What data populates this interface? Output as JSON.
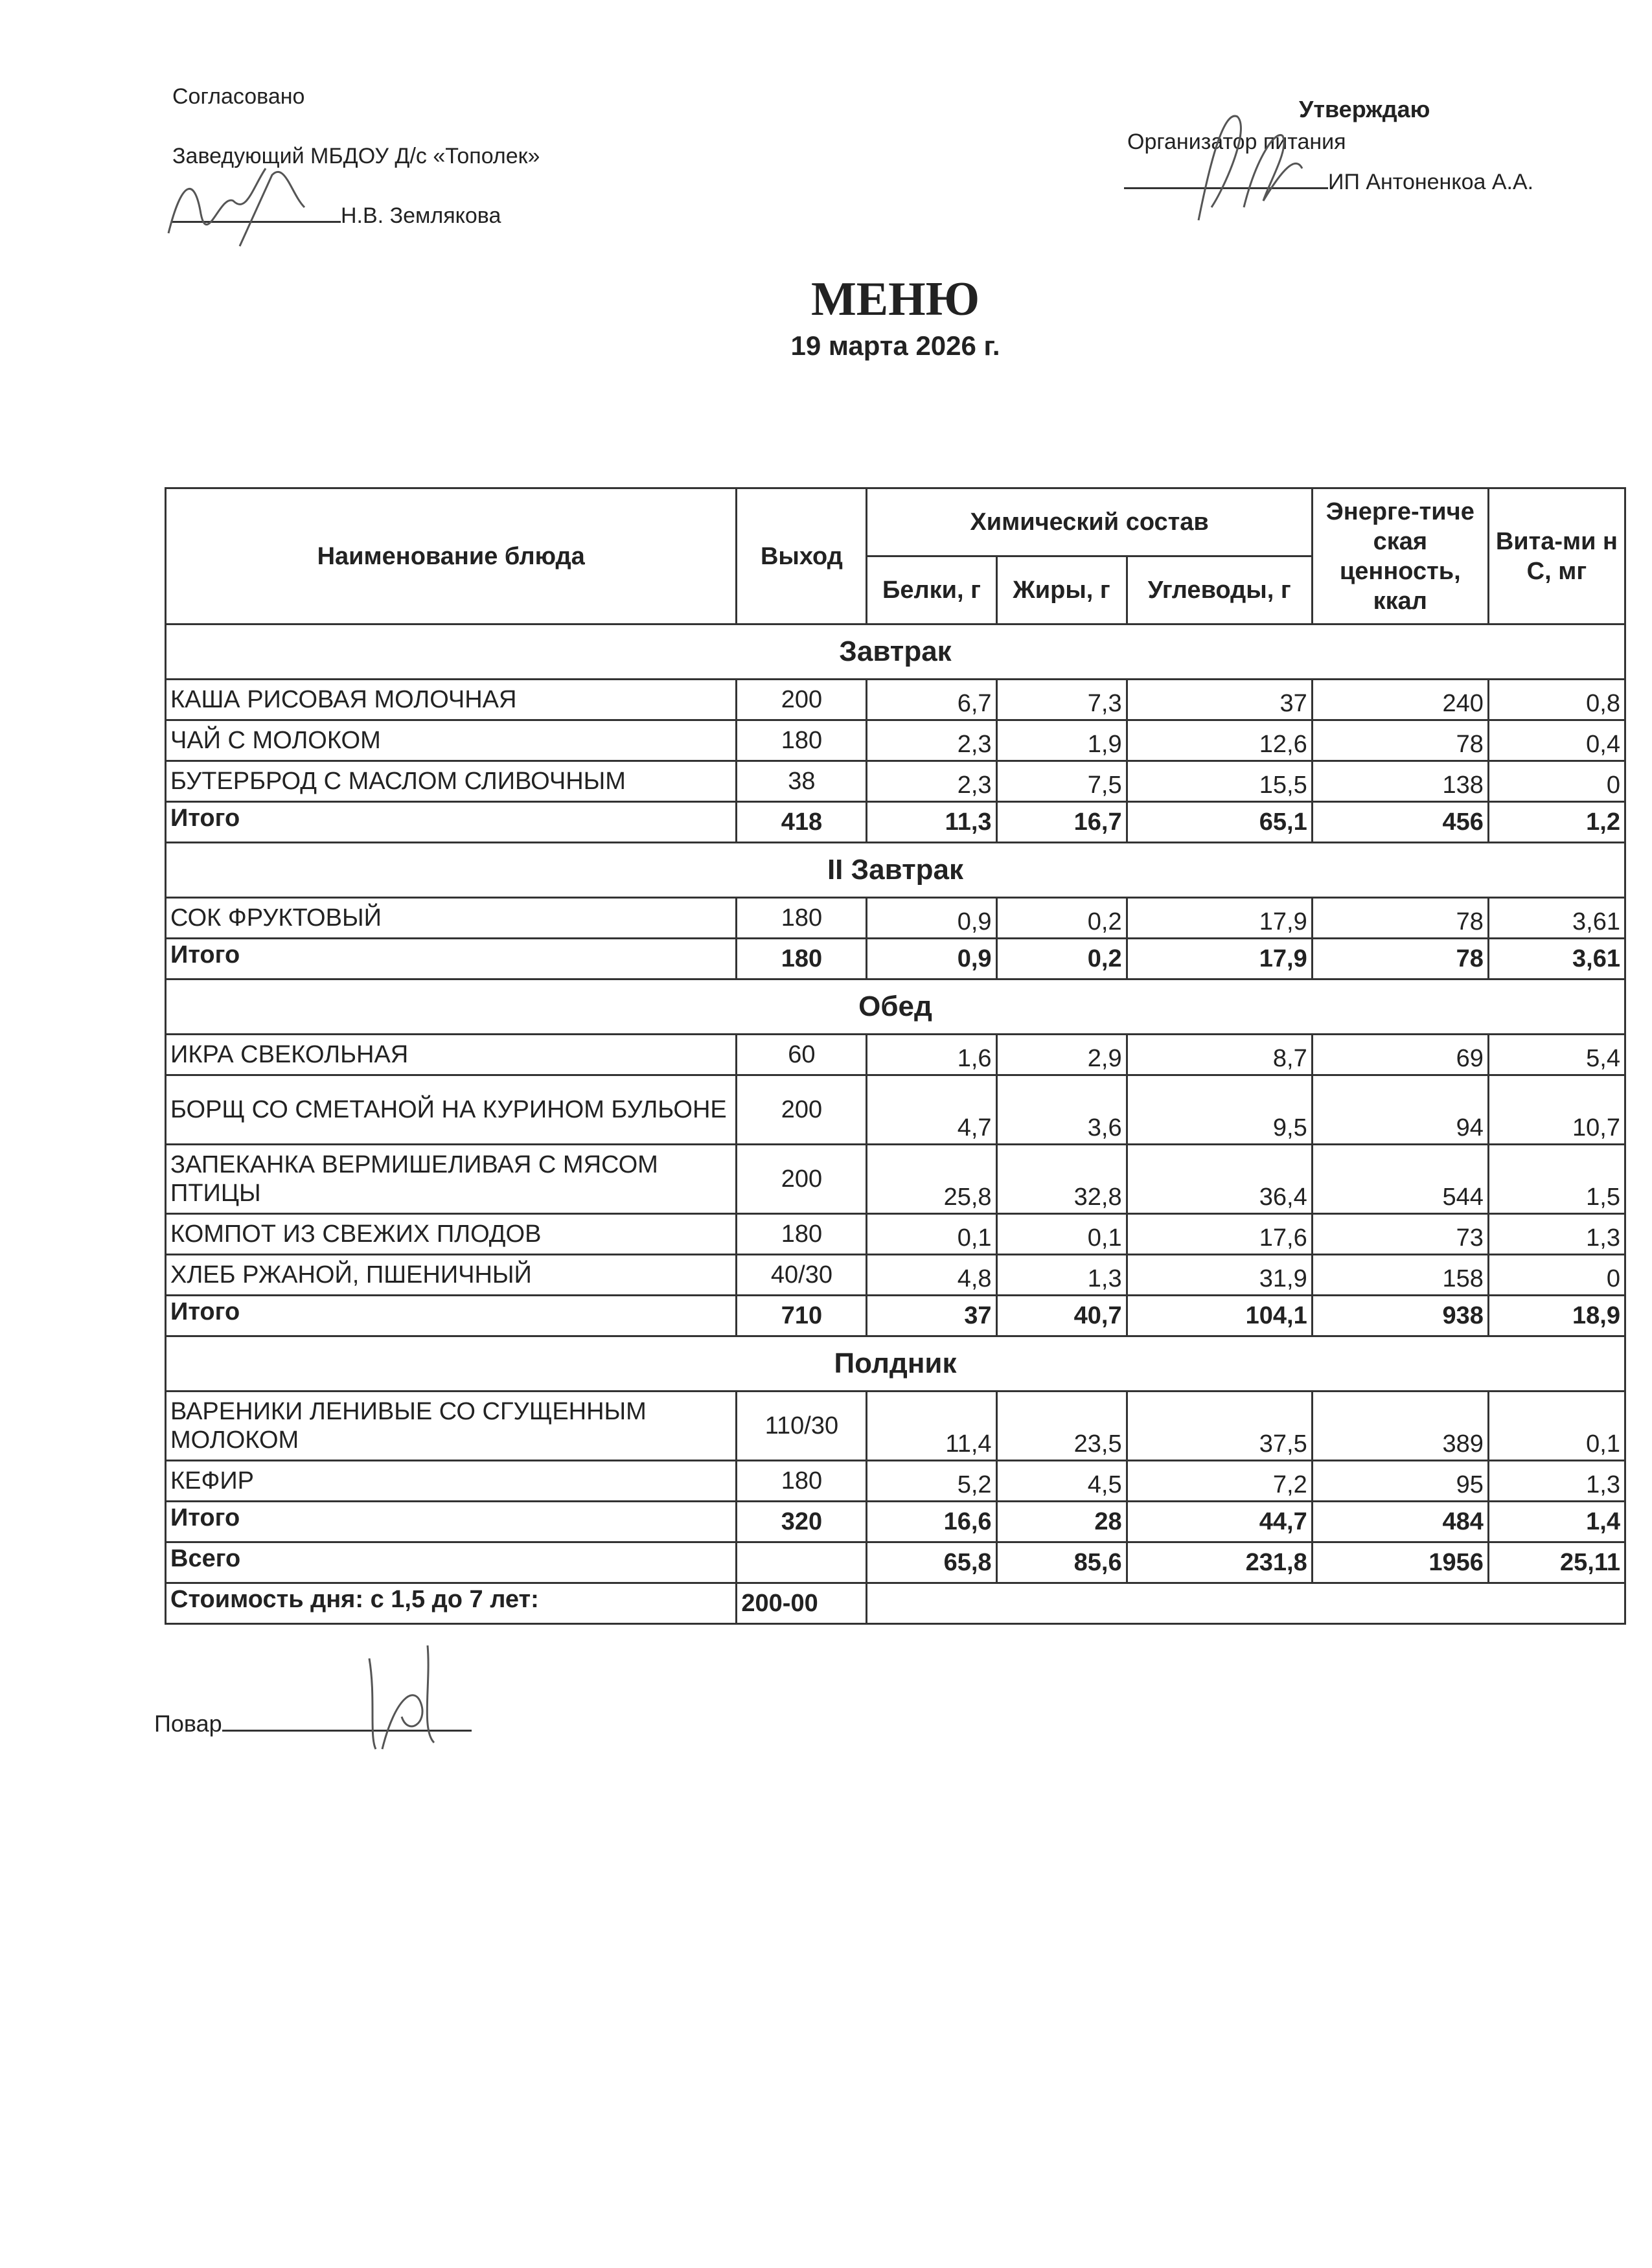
{
  "approval_left": {
    "line1": "Согласовано",
    "line2": "Заведующий МБДОУ Д/с «Тополек»",
    "signatory": "Н.В. Землякова"
  },
  "approval_right": {
    "line1": "Утверждаю",
    "line2": "Организатор питания",
    "signatory": "ИП Антоненкоа А.А."
  },
  "title": "МЕНЮ",
  "date": "19 марта 2026 г.",
  "table": {
    "headers": {
      "name": "Наименование блюда",
      "output": "Выход",
      "chem": "Химический состав",
      "proteins": "Белки, г",
      "fats": "Жиры, г",
      "carbs": "Углеводы, г",
      "energy": "Энерге-тиче ская ценность, ккал",
      "vitc": "Вита-ми н С, мг"
    },
    "sections": [
      {
        "title": "Завтрак",
        "items": [
          [
            "КАША РИСОВАЯ МОЛОЧНАЯ",
            "200",
            "6,7",
            "7,3",
            "37",
            "240",
            "0,8"
          ],
          [
            "ЧАЙ С МОЛОКОМ",
            "180",
            "2,3",
            "1,9",
            "12,6",
            "78",
            "0,4"
          ],
          [
            "БУТЕРБРОД С МАСЛОМ СЛИВОЧНЫМ",
            "38",
            "2,3",
            "7,5",
            "15,5",
            "138",
            "0"
          ]
        ],
        "total": [
          "Итого",
          "418",
          "11,3",
          "16,7",
          "65,1",
          "456",
          "1,2"
        ]
      },
      {
        "title": "II Завтрак",
        "items": [
          [
            "СОК ФРУКТОВЫЙ",
            "180",
            "0,9",
            "0,2",
            "17,9",
            "78",
            "3,61"
          ]
        ],
        "total": [
          "Итого",
          "180",
          "0,9",
          "0,2",
          "17,9",
          "78",
          "3,61"
        ]
      },
      {
        "title": "Обед",
        "items": [
          [
            "ИКРА СВЕКОЛЬНАЯ",
            "60",
            "1,6",
            "2,9",
            "8,7",
            "69",
            "5,4"
          ],
          [
            "БОРЩ СО СМЕТАНОЙ НА КУРИНОМ БУЛЬОНЕ",
            "200",
            "4,7",
            "3,6",
            "9,5",
            "94",
            "10,7"
          ],
          [
            "ЗАПЕКАНКА ВЕРМИШЕЛИВАЯ С МЯСОМ ПТИЦЫ",
            "200",
            "25,8",
            "32,8",
            "36,4",
            "544",
            "1,5"
          ],
          [
            "КОМПОТ ИЗ СВЕЖИХ ПЛОДОВ",
            "180",
            "0,1",
            "0,1",
            "17,6",
            "73",
            "1,3"
          ],
          [
            "ХЛЕБ   РЖАНОЙ, ПШЕНИЧНЫЙ",
            "40/30",
            "4,8",
            "1,3",
            "31,9",
            "158",
            "0"
          ]
        ],
        "total": [
          "Итого",
          "710",
          "37",
          "40,7",
          "104,1",
          "938",
          "18,9"
        ]
      },
      {
        "title": "Полдник",
        "items": [
          [
            "ВАРЕНИКИ ЛЕНИВЫЕ СО СГУЩЕННЫМ МОЛОКОМ",
            "110/30",
            "11,4",
            "23,5",
            "37,5",
            "389",
            "0,1"
          ],
          [
            "КЕФИР",
            "180",
            "5,2",
            "4,5",
            "7,2",
            "95",
            "1,3"
          ]
        ],
        "total": [
          "Итого",
          "320",
          "16,6",
          "28",
          "44,7",
          "484",
          "1,4"
        ]
      }
    ],
    "grand_total": [
      "Всего",
      "",
      "65,8",
      "85,6",
      "231,8",
      "1956",
      "25,11"
    ],
    "cost": {
      "label": "Стоимость дня: с 1,5 до 7 лет:",
      "value": "200-00"
    }
  },
  "cook_label": "Повар"
}
